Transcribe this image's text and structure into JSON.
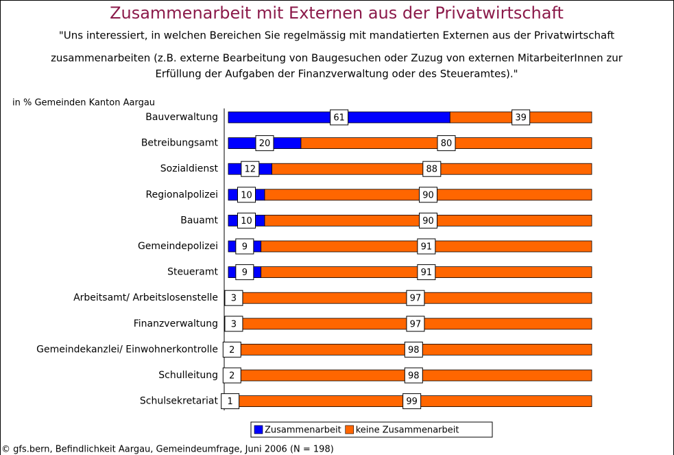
{
  "chart_data": {
    "type": "stacked-bar-horizontal",
    "title": "Zusammenarbeit mit Externen aus der Privatwirtschaft",
    "subtitle": [
      "\"Uns interessiert, in welchen Bereichen Sie regelmässig mit mandatierten Externen aus der Privatwirtschaft",
      "zusammenarbeiten (z.B. externe Bearbeitung von Baugesuchen oder Zuzug von externen MitarbeiterInnen zur",
      "Erfüllung der Aufgaben der Finanzverwaltung oder des Steueramtes).\""
    ],
    "axis_label": "in % Gemeinden Kanton Aargau",
    "categories": [
      "Bauverwaltung",
      "Betreibungsamt",
      "Sozialdienst",
      "Regionalpolizei",
      "Bauamt",
      "Gemeindepolizei",
      "Steueramt",
      "Arbeitsamt/ Arbeitslosenstelle",
      "Finanzverwaltung",
      "Gemeindekanzlei/ Einwohnerkontrolle",
      "Schulleitung",
      "Schulsekretariat"
    ],
    "series": [
      {
        "name": "Zusammenarbeit",
        "color": "#0000ff",
        "values": [
          61,
          20,
          12,
          10,
          10,
          9,
          9,
          3,
          3,
          2,
          2,
          1
        ]
      },
      {
        "name": "keine Zusammenarbeit",
        "color": "#ff6600",
        "values": [
          39,
          80,
          88,
          90,
          90,
          91,
          91,
          97,
          97,
          98,
          98,
          99
        ]
      }
    ],
    "footer": "© gfs.bern, Befindlichkeit Aargau, Gemeindeumfrage, Juni 2006 (N = 198)"
  }
}
